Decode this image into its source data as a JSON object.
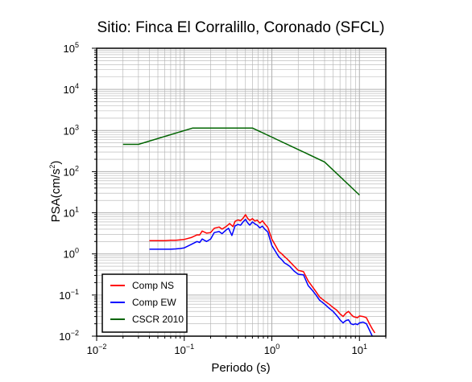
{
  "chart_data": {
    "type": "line",
    "title": "Sitio: Finca El Corralillo, Coronado (SFCL)",
    "xlabel": "Periodo (s)",
    "ylabel": "PSA(cm/s²)",
    "ylabel_base": "PSA(cm/s",
    "ylabel_sup": "2",
    "ylabel_tail": ")",
    "xscale": "log",
    "yscale": "log",
    "xlim": [
      0.01,
      20
    ],
    "ylim": [
      0.01,
      100000
    ],
    "grid": true,
    "legend_position": "bottom-left",
    "x_ticks": [
      {
        "value": 0.01,
        "base": "10",
        "exp": "−2"
      },
      {
        "value": 0.1,
        "base": "10",
        "exp": "−1"
      },
      {
        "value": 1,
        "base": "10",
        "exp": "0"
      },
      {
        "value": 10,
        "base": "10",
        "exp": "1"
      }
    ],
    "y_ticks": [
      {
        "value": 0.01,
        "base": "10",
        "exp": "−2"
      },
      {
        "value": 0.1,
        "base": "10",
        "exp": "−1"
      },
      {
        "value": 1,
        "base": "10",
        "exp": "0"
      },
      {
        "value": 10,
        "base": "10",
        "exp": "1"
      },
      {
        "value": 100,
        "base": "10",
        "exp": "2"
      },
      {
        "value": 1000,
        "base": "10",
        "exp": "3"
      },
      {
        "value": 10000,
        "base": "10",
        "exp": "4"
      },
      {
        "value": 100000,
        "base": "10",
        "exp": "5"
      }
    ],
    "series": [
      {
        "name": "Comp NS",
        "color": "#ff0000",
        "points": [
          [
            0.04,
            2.1
          ],
          [
            0.05,
            2.1
          ],
          [
            0.06,
            2.1
          ],
          [
            0.07,
            2.15
          ],
          [
            0.08,
            2.15
          ],
          [
            0.09,
            2.2
          ],
          [
            0.1,
            2.25
          ],
          [
            0.12,
            2.5
          ],
          [
            0.14,
            2.9
          ],
          [
            0.15,
            2.9
          ],
          [
            0.16,
            3.6
          ],
          [
            0.18,
            3.2
          ],
          [
            0.2,
            3.3
          ],
          [
            0.22,
            4.2
          ],
          [
            0.25,
            4.5
          ],
          [
            0.27,
            4.0
          ],
          [
            0.3,
            4.6
          ],
          [
            0.33,
            5.5
          ],
          [
            0.36,
            4.6
          ],
          [
            0.38,
            6.2
          ],
          [
            0.41,
            6.7
          ],
          [
            0.44,
            6.4
          ],
          [
            0.47,
            7.4
          ],
          [
            0.5,
            9.0
          ],
          [
            0.53,
            7.3
          ],
          [
            0.56,
            6.5
          ],
          [
            0.6,
            7.2
          ],
          [
            0.64,
            6.3
          ],
          [
            0.68,
            6.6
          ],
          [
            0.73,
            5.6
          ],
          [
            0.78,
            6.4
          ],
          [
            0.83,
            5.4
          ],
          [
            0.9,
            4.4
          ],
          [
            1.0,
            2.3
          ],
          [
            1.1,
            1.6
          ],
          [
            1.2,
            1.15
          ],
          [
            1.3,
            1.0
          ],
          [
            1.4,
            0.85
          ],
          [
            1.5,
            0.75
          ],
          [
            1.6,
            0.65
          ],
          [
            1.8,
            0.5
          ],
          [
            2.0,
            0.4
          ],
          [
            2.3,
            0.37
          ],
          [
            2.6,
            0.22
          ],
          [
            2.9,
            0.16
          ],
          [
            3.2,
            0.12
          ],
          [
            3.5,
            0.09
          ],
          [
            4.0,
            0.072
          ],
          [
            4.5,
            0.06
          ],
          [
            5.0,
            0.05
          ],
          [
            5.5,
            0.043
          ],
          [
            6.0,
            0.035
          ],
          [
            6.5,
            0.03
          ],
          [
            7.0,
            0.036
          ],
          [
            7.5,
            0.04
          ],
          [
            8.0,
            0.034
          ],
          [
            8.5,
            0.03
          ],
          [
            9.0,
            0.029
          ],
          [
            9.5,
            0.028
          ],
          [
            10.0,
            0.031
          ],
          [
            11.0,
            0.03
          ],
          [
            12.0,
            0.028
          ],
          [
            13.0,
            0.02
          ],
          [
            14.0,
            0.015
          ],
          [
            15.0,
            0.012
          ]
        ]
      },
      {
        "name": "Comp EW",
        "color": "#0000ff",
        "points": [
          [
            0.04,
            1.3
          ],
          [
            0.05,
            1.3
          ],
          [
            0.06,
            1.3
          ],
          [
            0.07,
            1.3
          ],
          [
            0.08,
            1.32
          ],
          [
            0.09,
            1.35
          ],
          [
            0.1,
            1.4
          ],
          [
            0.12,
            1.7
          ],
          [
            0.14,
            2.0
          ],
          [
            0.15,
            1.9
          ],
          [
            0.16,
            2.3
          ],
          [
            0.18,
            2.0
          ],
          [
            0.2,
            2.3
          ],
          [
            0.22,
            3.3
          ],
          [
            0.25,
            3.5
          ],
          [
            0.27,
            3.1
          ],
          [
            0.3,
            3.8
          ],
          [
            0.32,
            4.2
          ],
          [
            0.35,
            2.8
          ],
          [
            0.38,
            4.8
          ],
          [
            0.41,
            5.2
          ],
          [
            0.44,
            5.0
          ],
          [
            0.47,
            6.0
          ],
          [
            0.5,
            6.9
          ],
          [
            0.53,
            5.7
          ],
          [
            0.56,
            5.0
          ],
          [
            0.6,
            6.0
          ],
          [
            0.64,
            5.4
          ],
          [
            0.68,
            5.0
          ],
          [
            0.73,
            4.3
          ],
          [
            0.78,
            4.7
          ],
          [
            0.83,
            4.0
          ],
          [
            0.9,
            3.4
          ],
          [
            1.0,
            1.6
          ],
          [
            1.1,
            1.15
          ],
          [
            1.2,
            0.85
          ],
          [
            1.3,
            0.72
          ],
          [
            1.4,
            0.6
          ],
          [
            1.5,
            0.55
          ],
          [
            1.6,
            0.5
          ],
          [
            1.8,
            0.38
          ],
          [
            2.0,
            0.32
          ],
          [
            2.3,
            0.31
          ],
          [
            2.6,
            0.17
          ],
          [
            2.9,
            0.13
          ],
          [
            3.2,
            0.1
          ],
          [
            3.5,
            0.075
          ],
          [
            4.0,
            0.06
          ],
          [
            4.5,
            0.048
          ],
          [
            5.0,
            0.04
          ],
          [
            5.5,
            0.032
          ],
          [
            6.0,
            0.025
          ],
          [
            6.5,
            0.021
          ],
          [
            7.0,
            0.024
          ],
          [
            7.5,
            0.025
          ],
          [
            8.0,
            0.02
          ],
          [
            8.5,
            0.019
          ],
          [
            9.0,
            0.02
          ],
          [
            9.5,
            0.019
          ],
          [
            10.0,
            0.021
          ],
          [
            11.0,
            0.022
          ],
          [
            12.0,
            0.02
          ],
          [
            13.0,
            0.014
          ],
          [
            14.0,
            0.01
          ]
        ]
      },
      {
        "name": "CSCR 2010",
        "color": "#006400",
        "points": [
          [
            0.02,
            460
          ],
          [
            0.03,
            460
          ],
          [
            0.125,
            1150
          ],
          [
            0.6,
            1150
          ],
          [
            1.0,
            690
          ],
          [
            2.0,
            345
          ],
          [
            4.0,
            172
          ],
          [
            10.0,
            27
          ]
        ]
      }
    ]
  }
}
